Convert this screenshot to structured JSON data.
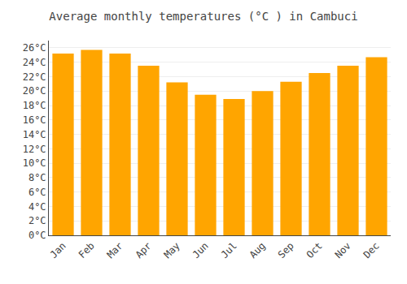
{
  "chart_data": {
    "type": "bar",
    "title": "Average monthly temperatures (°C ) in Cambuci",
    "categories": [
      "Jan",
      "Feb",
      "Mar",
      "Apr",
      "May",
      "Jun",
      "Jul",
      "Aug",
      "Sep",
      "Oct",
      "Nov",
      "Dec"
    ],
    "values": [
      25.2,
      25.7,
      25.2,
      23.5,
      21.2,
      19.5,
      18.9,
      20.0,
      21.3,
      22.5,
      23.5,
      24.7
    ],
    "color": "#FFA500",
    "ylim": [
      0,
      27
    ],
    "yticks": [
      {
        "value": 0,
        "label": "0°C"
      },
      {
        "value": 2,
        "label": "2°C"
      },
      {
        "value": 4,
        "label": "4°C"
      },
      {
        "value": 6,
        "label": "6°C"
      },
      {
        "value": 8,
        "label": "8°C"
      },
      {
        "value": 10,
        "label": "10°C"
      },
      {
        "value": 12,
        "label": "12°C"
      },
      {
        "value": 14,
        "label": "14°C"
      },
      {
        "value": 16,
        "label": "16°C"
      },
      {
        "value": 18,
        "label": "18°C"
      },
      {
        "value": 20,
        "label": "20°C"
      },
      {
        "value": 22,
        "label": "22°C"
      },
      {
        "value": 24,
        "label": "24°C"
      },
      {
        "value": 26,
        "label": "26°C"
      }
    ],
    "grid": true
  }
}
